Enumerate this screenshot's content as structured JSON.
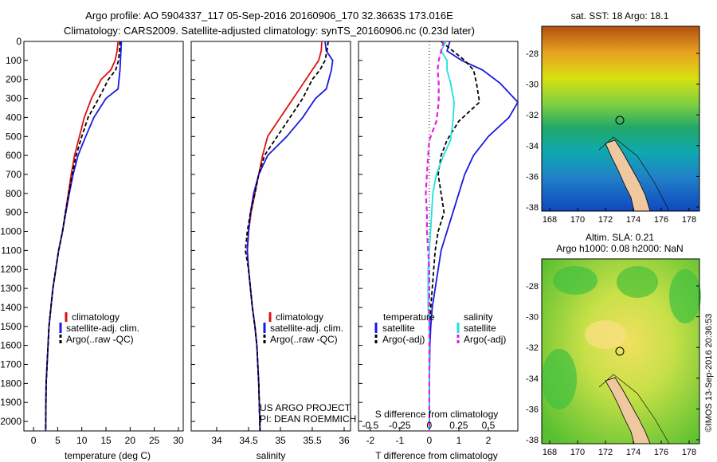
{
  "header": {
    "line1": "Argo profile: AO 5904337_117 05-Sep-2016 20160906_170 32.3663S 173.016E",
    "line2": "Climatology: CARS2009. Satellite-adjusted climatology: synTS_20160906.nc (0.23d later)"
  },
  "colors": {
    "climatology": "#e01010",
    "satellite": "#1a1ae0",
    "argo": "#000000",
    "sat_s": "#20e0e0",
    "argo_s": "#e020e0"
  },
  "chart_data": [
    {
      "type": "line",
      "id": "temperature",
      "xlabel": "temperature (deg C)",
      "xlim": [
        -2,
        31
      ],
      "xticks": [
        0,
        5,
        10,
        15,
        20,
        25,
        30
      ],
      "ylim": [
        0,
        2050
      ],
      "yticks": [
        0,
        100,
        200,
        300,
        400,
        500,
        600,
        700,
        800,
        900,
        1000,
        1100,
        1200,
        1300,
        1400,
        1500,
        1600,
        1700,
        1800,
        1900,
        2000
      ],
      "series": [
        {
          "name": "climatology",
          "x": [
            17.5,
            17.3,
            16.9,
            16.0,
            14.0,
            12.0,
            10.5,
            9.5,
            8.5,
            7.8,
            7.2,
            6.6,
            6.0,
            5.2,
            4.6,
            4.0,
            3.6,
            3.2,
            3.0,
            2.8,
            2.6,
            2.5
          ],
          "y": [
            0,
            50,
            100,
            150,
            200,
            300,
            400,
            500,
            600,
            700,
            800,
            900,
            1000,
            1100,
            1200,
            1300,
            1400,
            1500,
            1600,
            1700,
            1800,
            2050
          ]
        },
        {
          "name": "satellite-adj. clim.",
          "x": [
            18.2,
            18.1,
            18.0,
            17.9,
            17.5,
            15.0,
            12.5,
            10.8,
            9.2,
            8.2,
            7.4,
            6.7,
            6.0,
            5.2,
            4.6,
            4.0,
            3.6,
            3.2,
            3.0,
            2.8,
            2.6,
            2.5
          ],
          "y": [
            0,
            50,
            100,
            150,
            250,
            300,
            400,
            500,
            600,
            700,
            800,
            900,
            1000,
            1100,
            1200,
            1300,
            1400,
            1500,
            1600,
            1700,
            1800,
            2050
          ]
        },
        {
          "name": "Argo(..raw -QC)",
          "x": [
            17.9,
            17.8,
            17.6,
            17.0,
            15.5,
            13.5,
            11.3,
            10.0,
            8.8,
            8.0,
            7.3,
            6.6,
            6.0,
            5.2,
            4.6,
            4.0,
            3.6,
            3.2,
            3.0,
            2.8,
            2.6,
            2.5
          ],
          "y": [
            0,
            50,
            100,
            150,
            200,
            300,
            400,
            500,
            600,
            700,
            800,
            900,
            1000,
            1100,
            1200,
            1300,
            1400,
            1500,
            1600,
            1700,
            1800,
            2050
          ]
        }
      ],
      "legend": [
        "climatology",
        "satellite-adj. clim.",
        "Argo(..raw -QC)"
      ]
    },
    {
      "type": "line",
      "id": "salinity",
      "xlabel": "salinity",
      "xlim": [
        33.6,
        36.1
      ],
      "xticks": [
        34,
        34.5,
        35,
        35.5,
        36
      ],
      "ylim": [
        0,
        2050
      ],
      "series": [
        {
          "name": "climatology",
          "x": [
            35.65,
            35.64,
            35.6,
            35.5,
            35.4,
            35.2,
            35.0,
            34.8,
            34.72,
            34.66,
            34.6,
            34.54,
            34.5,
            34.48,
            34.5,
            34.53,
            34.56,
            34.6,
            34.63,
            34.66,
            34.68
          ],
          "y": [
            0,
            50,
            100,
            150,
            200,
            300,
            400,
            500,
            600,
            700,
            800,
            900,
            1000,
            1100,
            1200,
            1300,
            1400,
            1500,
            1600,
            1800,
            2050
          ]
        },
        {
          "name": "satellite-adj. clim.",
          "x": [
            35.7,
            35.72,
            35.82,
            35.8,
            35.72,
            35.55,
            35.35,
            35.1,
            34.8,
            34.66,
            34.58,
            34.53,
            34.5,
            34.48,
            34.5,
            34.53,
            34.56,
            34.6,
            34.63,
            34.66,
            34.68
          ],
          "y": [
            0,
            50,
            100,
            150,
            250,
            300,
            400,
            500,
            600,
            700,
            800,
            900,
            1000,
            1100,
            1200,
            1300,
            1400,
            1500,
            1600,
            1800,
            2050
          ]
        },
        {
          "name": "Argo(..raw -QC)",
          "x": [
            35.75,
            35.73,
            35.7,
            35.62,
            35.5,
            35.35,
            35.15,
            34.95,
            34.75,
            34.66,
            34.6,
            34.53,
            34.48,
            34.45,
            34.5,
            34.53,
            34.56,
            34.6,
            34.63,
            34.66,
            34.68
          ],
          "y": [
            0,
            50,
            100,
            150,
            200,
            300,
            400,
            500,
            600,
            700,
            800,
            900,
            1000,
            1100,
            1200,
            1300,
            1400,
            1500,
            1600,
            1800,
            2050
          ]
        }
      ],
      "legend": [
        "climatology",
        "satellite-adj. clim.",
        "Argo(..raw -QC)"
      ],
      "annotation": [
        "US ARGO PROJECT",
        "PI: DEAN ROEMMICH"
      ]
    },
    {
      "type": "line",
      "id": "difference",
      "xlabel": "T difference from climatology",
      "xlim": [
        -2.4,
        3.0
      ],
      "xticks": [
        -2,
        -1,
        0,
        1,
        2
      ],
      "top_axis_label": "S difference from climatology",
      "top_ticks": [
        -0.5,
        -0.25,
        0,
        0.25,
        0.5
      ],
      "ylim": [
        0,
        2050
      ],
      "series": [
        {
          "name": "temperature satellite",
          "x": [
            0.7,
            0.6,
            1.1,
            1.8,
            2.4,
            3.0,
            2.7,
            2.0,
            1.5,
            1.2,
            1.0,
            0.8,
            0.6,
            0.4,
            0.3,
            0.2,
            0.1,
            0.05,
            0.02,
            0.0,
            0.0
          ],
          "y": [
            0,
            50,
            100,
            150,
            220,
            320,
            400,
            500,
            600,
            700,
            800,
            900,
            1000,
            1100,
            1200,
            1300,
            1400,
            1500,
            1600,
            1800,
            2050
          ]
        },
        {
          "name": "temperature Argo(-adj)",
          "x": [
            0.4,
            0.8,
            1.2,
            1.5,
            1.6,
            1.7,
            1.0,
            0.6,
            0.4,
            0.3,
            0.4,
            0.5,
            0.3,
            0.2,
            0.15,
            0.1,
            0.05,
            0.0,
            0.0,
            0.0,
            0.0
          ],
          "y": [
            0,
            50,
            100,
            150,
            220,
            320,
            420,
            520,
            600,
            700,
            800,
            900,
            1000,
            1100,
            1200,
            1300,
            1400,
            1500,
            1600,
            1800,
            2050
          ]
        },
        {
          "name": "salinity satellite",
          "x": [
            0.14,
            0.1,
            0.15,
            0.15,
            0.18,
            0.21,
            0.2,
            0.18,
            0.12,
            0.06,
            0.03,
            0.02,
            0.01,
            0.0,
            -0.01,
            -0.01,
            -0.01,
            0.0,
            0.0,
            0.0,
            0.0
          ],
          "y": [
            0,
            50,
            100,
            150,
            220,
            320,
            420,
            520,
            600,
            700,
            800,
            900,
            1000,
            1100,
            1200,
            1300,
            1400,
            1500,
            1600,
            1800,
            2050
          ]
        },
        {
          "name": "salinity Argo(-adj)",
          "x": [
            0.12,
            0.1,
            0.08,
            0.07,
            0.08,
            0.08,
            0.06,
            0.0,
            -0.01,
            -0.02,
            -0.03,
            -0.02,
            -0.02,
            -0.01,
            0.0,
            0.0,
            0.0,
            0.0,
            0.0,
            0.0,
            0.0
          ],
          "y": [
            0,
            50,
            100,
            150,
            220,
            320,
            420,
            520,
            600,
            700,
            800,
            900,
            1000,
            1100,
            1200,
            1300,
            1400,
            1500,
            1600,
            1800,
            2050
          ]
        }
      ],
      "legend_headers": [
        "temperature",
        "salinity"
      ],
      "legend": [
        "satellite",
        "Argo(-adj)",
        "satellite",
        "Argo(-adj)"
      ]
    }
  ],
  "maps": {
    "sst": {
      "title": "sat. SST: 18 Argo: 18.1",
      "xticks": [
        "168",
        "170",
        "172",
        "174",
        "176",
        "178"
      ],
      "yticks": [
        "-28",
        "-30",
        "-32",
        "-34",
        "-36",
        "-38"
      ]
    },
    "sla": {
      "title1": "Altim. SLA: 0.21",
      "title2": "Argo h1000: 0.08 h2000: NaN",
      "xticks": [
        "168",
        "170",
        "172",
        "174",
        "176",
        "178"
      ],
      "yticks": [
        "-28",
        "-30",
        "-32",
        "-34",
        "-36",
        "-38"
      ]
    }
  },
  "footer_stamp": "©IMOS 13-Sep-2016 20:36:53"
}
